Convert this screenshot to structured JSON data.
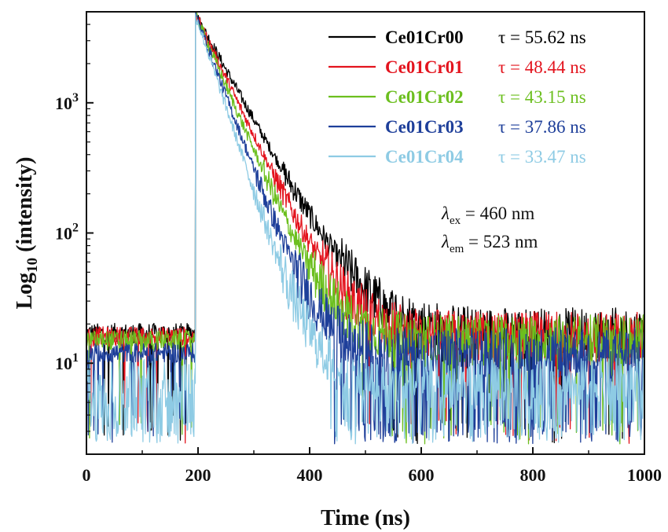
{
  "chart_data": {
    "type": "line",
    "xlabel": "Time (ns)",
    "ylabel": "Log10 (intensity)",
    "ylabel_parts": {
      "main": "Log",
      "sub": "10",
      "rest": " (intensity)"
    },
    "xlim": [
      0,
      1000
    ],
    "ylim": [
      2,
      5000
    ],
    "yscale": "log",
    "x_ticks": [
      {
        "value": 0,
        "label": "0"
      },
      {
        "value": 200,
        "label": "200"
      },
      {
        "value": 400,
        "label": "400"
      },
      {
        "value": 600,
        "label": "600"
      },
      {
        "value": 800,
        "label": "800"
      },
      {
        "value": 1000,
        "label": "1000"
      }
    ],
    "y_ticks": [
      {
        "value": 10,
        "base": "10",
        "exp": "1"
      },
      {
        "value": 100,
        "base": "10",
        "exp": "2"
      },
      {
        "value": 1000,
        "base": "10",
        "exp": "3"
      }
    ],
    "grid": false,
    "legend_position": "top-right",
    "excitation_time": 195,
    "peak_value": 4800,
    "series": [
      {
        "name": "Ce01Cr00",
        "tau_text": "τ = 55.62 ns",
        "tau": 55.62,
        "background": 17,
        "noise_floor": 2.4,
        "color": "#000000"
      },
      {
        "name": "Ce01Cr01",
        "tau_text": "τ = 48.44 ns",
        "tau": 48.44,
        "background": 16,
        "noise_floor": 2.4,
        "color": "#e3141e"
      },
      {
        "name": "Ce01Cr02",
        "tau_text": "τ = 43.15 ns",
        "tau": 43.15,
        "background": 15,
        "noise_floor": 2.4,
        "color": "#6cbf1f"
      },
      {
        "name": "Ce01Cr03",
        "tau_text": "τ = 37.86 ns",
        "tau": 37.86,
        "background": 12,
        "noise_floor": 2.4,
        "color": "#1e3f9a"
      },
      {
        "name": "Ce01Cr04",
        "tau_text": "τ = 33.47 ns",
        "tau": 33.47,
        "background": 7,
        "noise_floor": 2.4,
        "color": "#8ecbe4"
      }
    ],
    "annotations": [
      {
        "symbol": "λ",
        "sub": "ex",
        "text": " = 460 nm"
      },
      {
        "symbol": "λ",
        "sub": "em",
        "text": " = 523 nm"
      }
    ]
  }
}
